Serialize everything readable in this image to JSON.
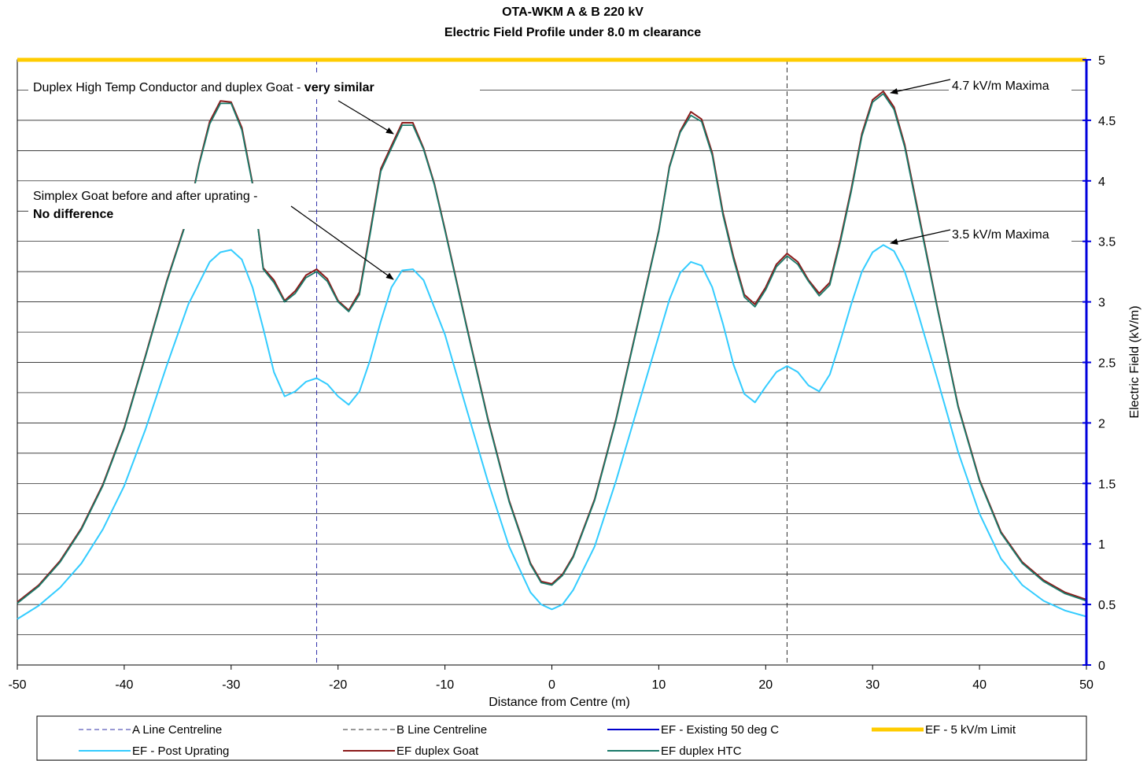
{
  "chart_data": {
    "type": "line",
    "title": "OTA-WKM A & B 220 kV",
    "subtitle": "Electric Field Profile under 8.0 m clearance",
    "xlabel": "Distance from Centre (m)",
    "ylabel": "Electric Field (kV/m)",
    "xlim": [
      -50,
      50
    ],
    "ylim": [
      0,
      5
    ],
    "x_ticks": [
      "-50",
      "-40",
      "-30",
      "-20",
      "-10",
      "0",
      "10",
      "20",
      "30",
      "40",
      "50"
    ],
    "y_ticks": [
      "0",
      "0.5",
      "1",
      "1.5",
      "2",
      "2.5",
      "3",
      "3.5",
      "4",
      "4.5",
      "5"
    ],
    "grid": true,
    "legend_position": "bottom",
    "colors": {
      "a_line": "#3333aa",
      "b_line": "#333333",
      "existing": "#0000cc",
      "limit": "#ffcc00",
      "post": "#33ccff",
      "goat": "#8b1a1a",
      "htc": "#1a7a6a",
      "axis": "#0000dd",
      "grid": "#000000"
    },
    "vertical_lines": [
      {
        "name": "A Line Centreline",
        "x": -22
      },
      {
        "name": "B Line Centreline",
        "x": 22
      }
    ],
    "series": [
      {
        "name": "A Line Centreline",
        "style": "dashed"
      },
      {
        "name": "B Line Centreline",
        "style": "dashed"
      },
      {
        "name": "EF - Existing 50 deg C",
        "style": "solid"
      },
      {
        "name": "EF - 5 kV/m Limit",
        "style": "thick",
        "x": [
          -50,
          50
        ],
        "y": [
          5,
          5
        ]
      },
      {
        "name": "EF - Post Uprating",
        "style": "solid",
        "x": [
          -50,
          -48,
          -46,
          -44,
          -42,
          -40,
          -38,
          -36,
          -34,
          -32,
          -31,
          -30,
          -29,
          -28,
          -27,
          -26,
          -25,
          -24,
          -23,
          -22,
          -21,
          -20,
          -19,
          -18,
          -17,
          -16,
          -15,
          -14,
          -13,
          -12,
          -10,
          -8,
          -6,
          -4,
          -2,
          -1,
          0,
          1,
          2,
          4,
          6,
          8,
          10,
          11,
          12,
          13,
          14,
          15,
          16,
          17,
          18,
          19,
          20,
          21,
          22,
          23,
          24,
          25,
          26,
          27,
          28,
          29,
          30,
          31,
          32,
          33,
          34,
          36,
          38,
          40,
          42,
          44,
          46,
          48,
          50
        ],
        "y": [
          0.38,
          0.49,
          0.64,
          0.84,
          1.12,
          1.48,
          1.95,
          2.48,
          2.98,
          3.33,
          3.41,
          3.43,
          3.35,
          3.12,
          2.78,
          2.42,
          2.22,
          2.26,
          2.34,
          2.37,
          2.32,
          2.22,
          2.15,
          2.26,
          2.52,
          2.84,
          3.12,
          3.26,
          3.27,
          3.18,
          2.73,
          2.12,
          1.52,
          0.98,
          0.6,
          0.5,
          0.46,
          0.5,
          0.62,
          0.98,
          1.52,
          2.12,
          2.72,
          3.02,
          3.24,
          3.33,
          3.3,
          3.12,
          2.82,
          2.48,
          2.24,
          2.17,
          2.3,
          2.42,
          2.47,
          2.42,
          2.31,
          2.26,
          2.4,
          2.68,
          2.98,
          3.25,
          3.41,
          3.47,
          3.42,
          3.25,
          2.98,
          2.38,
          1.76,
          1.25,
          0.88,
          0.66,
          0.53,
          0.45,
          0.4
        ]
      },
      {
        "name": "EF duplex Goat",
        "style": "solid",
        "x": [
          -50,
          -48,
          -46,
          -44,
          -42,
          -40,
          -38,
          -36,
          -34,
          -33,
          -32,
          -31,
          -30,
          -29,
          -28,
          -27,
          -26,
          -25,
          -24,
          -23,
          -22,
          -21,
          -20,
          -19,
          -18,
          -17,
          -16,
          -15,
          -14,
          -13,
          -12,
          -11,
          -10,
          -8,
          -6,
          -4,
          -2,
          -1,
          0,
          1,
          2,
          4,
          6,
          8,
          10,
          11,
          12,
          13,
          14,
          15,
          16,
          17,
          18,
          19,
          20,
          21,
          22,
          23,
          24,
          25,
          26,
          27,
          28,
          29,
          30,
          31,
          32,
          33,
          34,
          36,
          38,
          40,
          42,
          44,
          46,
          48,
          50
        ],
        "y": [
          0.52,
          0.66,
          0.86,
          1.13,
          1.49,
          1.96,
          2.56,
          3.18,
          3.72,
          4.14,
          4.49,
          4.66,
          4.65,
          4.44,
          3.98,
          3.28,
          3.18,
          3.01,
          3.09,
          3.22,
          3.27,
          3.19,
          3.01,
          2.93,
          3.08,
          3.58,
          4.1,
          4.29,
          4.48,
          4.48,
          4.27,
          3.98,
          3.6,
          2.81,
          2.04,
          1.36,
          0.84,
          0.69,
          0.67,
          0.75,
          0.9,
          1.37,
          2.03,
          2.81,
          3.59,
          4.12,
          4.41,
          4.57,
          4.51,
          4.23,
          3.74,
          3.37,
          3.06,
          2.98,
          3.12,
          3.31,
          3.4,
          3.33,
          3.18,
          3.07,
          3.16,
          3.52,
          3.93,
          4.39,
          4.67,
          4.74,
          4.61,
          4.3,
          3.86,
          2.98,
          2.14,
          1.53,
          1.1,
          0.85,
          0.7,
          0.6,
          0.54
        ]
      },
      {
        "name": "EF duplex HTC",
        "style": "solid",
        "x": [
          -50,
          -48,
          -46,
          -44,
          -42,
          -40,
          -38,
          -36,
          -34,
          -33,
          -32,
          -31,
          -30,
          -29,
          -28,
          -27,
          -26,
          -25,
          -24,
          -23,
          -22,
          -21,
          -20,
          -19,
          -18,
          -17,
          -16,
          -15,
          -14,
          -13,
          -12,
          -11,
          -10,
          -8,
          -6,
          -4,
          -2,
          -1,
          0,
          1,
          2,
          4,
          6,
          8,
          10,
          11,
          12,
          13,
          14,
          15,
          16,
          17,
          18,
          19,
          20,
          21,
          22,
          23,
          24,
          25,
          26,
          27,
          28,
          29,
          30,
          31,
          32,
          33,
          34,
          36,
          38,
          40,
          42,
          44,
          46,
          48,
          50
        ],
        "y": [
          0.51,
          0.65,
          0.85,
          1.12,
          1.48,
          1.95,
          2.55,
          3.17,
          3.71,
          4.13,
          4.47,
          4.64,
          4.64,
          4.42,
          3.97,
          3.27,
          3.16,
          3.0,
          3.07,
          3.2,
          3.25,
          3.17,
          3.0,
          2.92,
          3.06,
          3.56,
          4.08,
          4.27,
          4.46,
          4.46,
          4.26,
          3.97,
          3.59,
          2.8,
          2.03,
          1.35,
          0.83,
          0.68,
          0.66,
          0.74,
          0.89,
          1.36,
          2.02,
          2.8,
          3.58,
          4.11,
          4.4,
          4.54,
          4.49,
          4.21,
          3.72,
          3.35,
          3.04,
          2.96,
          3.1,
          3.29,
          3.38,
          3.31,
          3.17,
          3.05,
          3.14,
          3.5,
          3.91,
          4.37,
          4.65,
          4.72,
          4.59,
          4.28,
          3.84,
          2.97,
          2.13,
          1.52,
          1.09,
          0.84,
          0.69,
          0.59,
          0.53
        ]
      }
    ],
    "annotations": [
      {
        "text": "Duplex High Temp Conductor and duplex Goat - ",
        "bold": "very similar"
      },
      {
        "text": "Simplex Goat before and after uprating -",
        "bold": "No difference"
      },
      {
        "text": "4.7 kV/m Maxima"
      },
      {
        "text": "3.5 kV/m Maxima"
      }
    ]
  }
}
